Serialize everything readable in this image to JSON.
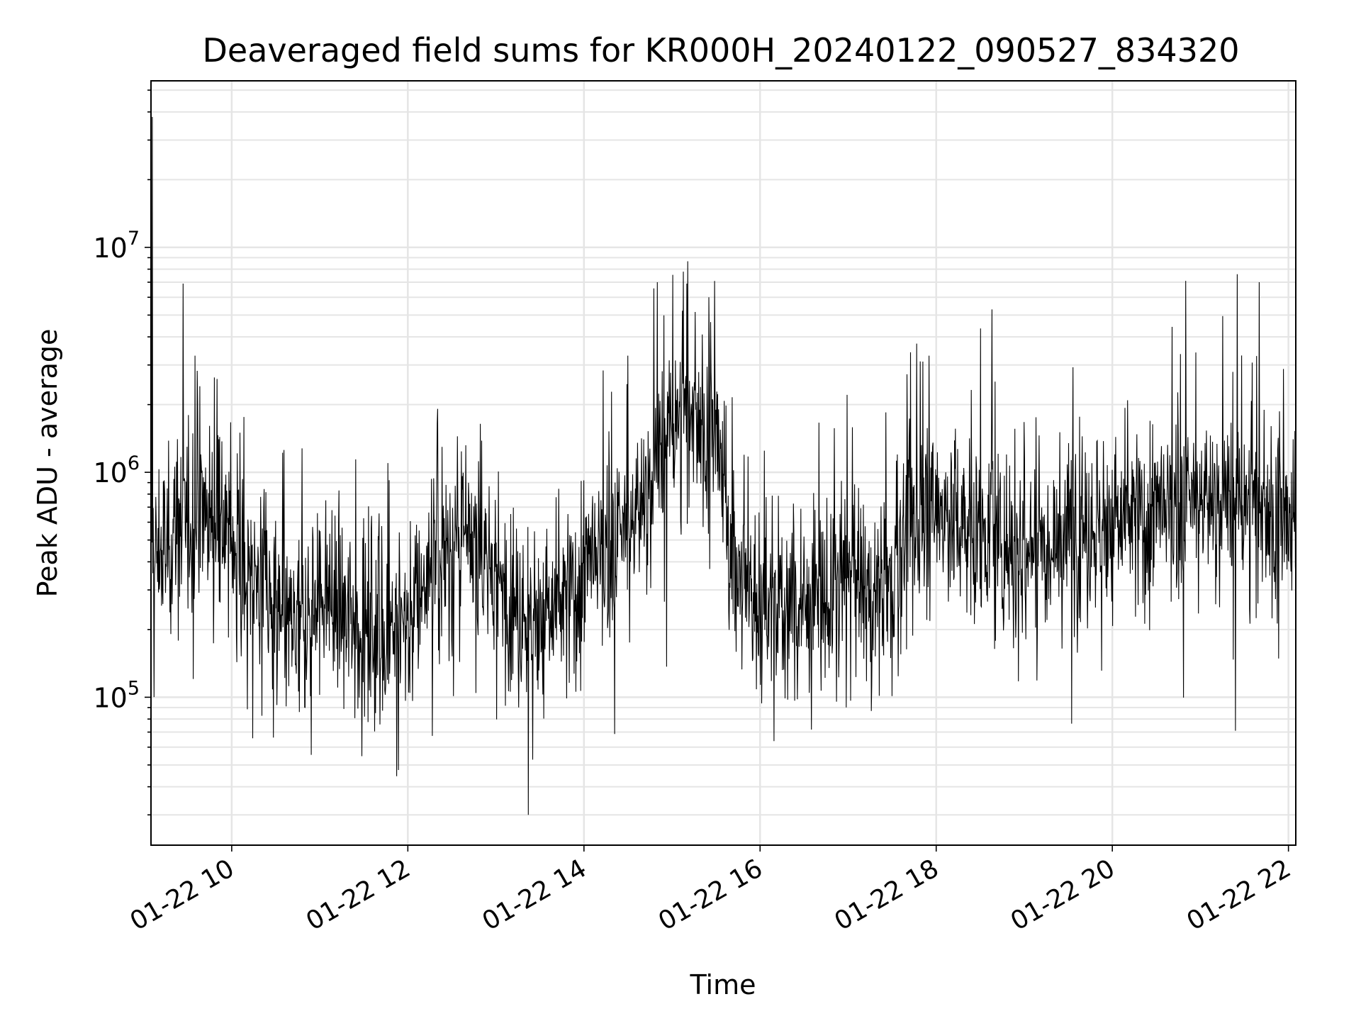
{
  "chart_data": {
    "type": "line",
    "title": "Deaveraged field sums for KR000H_20240122_090527_834320",
    "xlabel": "Time",
    "ylabel": "Peak ADU - average",
    "x_axis_type": "datetime",
    "y_scale": "log",
    "xlim": [
      "2024-01-22T09:05",
      "2024-01-22T22:05"
    ],
    "ylim": [
      22000,
      55000000
    ],
    "x_ticks": [
      {
        "label": "01-22 10",
        "value": "2024-01-22T10:00"
      },
      {
        "label": "01-22 12",
        "value": "2024-01-22T12:00"
      },
      {
        "label": "01-22 14",
        "value": "2024-01-22T14:00"
      },
      {
        "label": "01-22 16",
        "value": "2024-01-22T16:00"
      },
      {
        "label": "01-22 18",
        "value": "2024-01-22T18:00"
      },
      {
        "label": "01-22 20",
        "value": "2024-01-22T20:00"
      },
      {
        "label": "01-22 22",
        "value": "2024-01-22T22:00"
      }
    ],
    "y_ticks": [
      {
        "base": "10",
        "exp": "5",
        "value": 100000
      },
      {
        "base": "10",
        "exp": "6",
        "value": 1000000
      },
      {
        "base": "10",
        "exp": "7",
        "value": 10000000
      }
    ],
    "grid": true,
    "line_color": "#000000",
    "grid_color": "#e5e5e5",
    "series": [
      {
        "x": [
          "2024-01-22T09:05",
          "2024-01-22T09:15",
          "2024-01-22T09:30",
          "2024-01-22T09:45",
          "2024-01-22T10:00",
          "2024-01-22T10:15",
          "2024-01-22T10:30",
          "2024-01-22T10:45",
          "2024-01-22T11:00",
          "2024-01-22T11:15",
          "2024-01-22T11:30",
          "2024-01-22T11:45",
          "2024-01-22T12:00",
          "2024-01-22T12:15",
          "2024-01-22T12:30",
          "2024-01-22T12:45",
          "2024-01-22T13:00",
          "2024-01-22T13:15",
          "2024-01-22T13:30",
          "2024-01-22T13:45",
          "2024-01-22T14:00",
          "2024-01-22T14:15",
          "2024-01-22T14:30",
          "2024-01-22T14:45",
          "2024-01-22T15:00",
          "2024-01-22T15:15",
          "2024-01-22T15:30",
          "2024-01-22T15:45",
          "2024-01-22T16:00",
          "2024-01-22T16:15",
          "2024-01-22T16:30",
          "2024-01-22T16:45",
          "2024-01-22T17:00",
          "2024-01-22T17:15",
          "2024-01-22T17:30",
          "2024-01-22T17:45",
          "2024-01-22T18:00",
          "2024-01-22T18:15",
          "2024-01-22T18:30",
          "2024-01-22T18:45",
          "2024-01-22T19:00",
          "2024-01-22T19:15",
          "2024-01-22T19:30",
          "2024-01-22T19:45",
          "2024-01-22T20:00",
          "2024-01-22T20:15",
          "2024-01-22T20:30",
          "2024-01-22T20:45",
          "2024-01-22T21:00",
          "2024-01-22T21:15",
          "2024-01-22T21:30",
          "2024-01-22T21:45",
          "2024-01-22T22:00",
          "2024-01-22T22:05"
        ],
        "median": [
          400000,
          450000,
          650000,
          700000,
          500000,
          350000,
          220000,
          180000,
          300000,
          250000,
          200000,
          200000,
          220000,
          400000,
          480000,
          450000,
          350000,
          250000,
          220000,
          250000,
          350000,
          420000,
          550000,
          900000,
          1600000,
          2000000,
          1300000,
          350000,
          250000,
          230000,
          280000,
          250000,
          350000,
          300000,
          350000,
          600000,
          700000,
          600000,
          520000,
          500000,
          450000,
          520000,
          550000,
          560000,
          580000,
          620000,
          620000,
          650000,
          780000,
          750000,
          700000,
          720000,
          500000,
          560000
        ],
        "spikes": [
          {
            "x": "2024-01-22T09:06",
            "y": 38000000
          },
          {
            "x": "2024-01-22T09:35",
            "y": 3300000
          },
          {
            "x": "2024-01-22T09:50",
            "y": 2600000
          },
          {
            "x": "2024-01-22T12:20",
            "y": 1650000
          },
          {
            "x": "2024-01-22T13:22",
            "y": 30000
          },
          {
            "x": "2024-01-22T14:30",
            "y": 3300000
          },
          {
            "x": "2024-01-22T14:50",
            "y": 7000000
          },
          {
            "x": "2024-01-22T15:10",
            "y": 6900000
          },
          {
            "x": "2024-01-22T15:25",
            "y": 6000000
          },
          {
            "x": "2024-01-22T17:55",
            "y": 3300000
          },
          {
            "x": "2024-01-22T18:38",
            "y": 5300000
          },
          {
            "x": "2024-01-22T20:50",
            "y": 7100000
          },
          {
            "x": "2024-01-22T21:25",
            "y": 7600000
          },
          {
            "x": "2024-01-22T21:40",
            "y": 7000000
          }
        ]
      }
    ]
  }
}
